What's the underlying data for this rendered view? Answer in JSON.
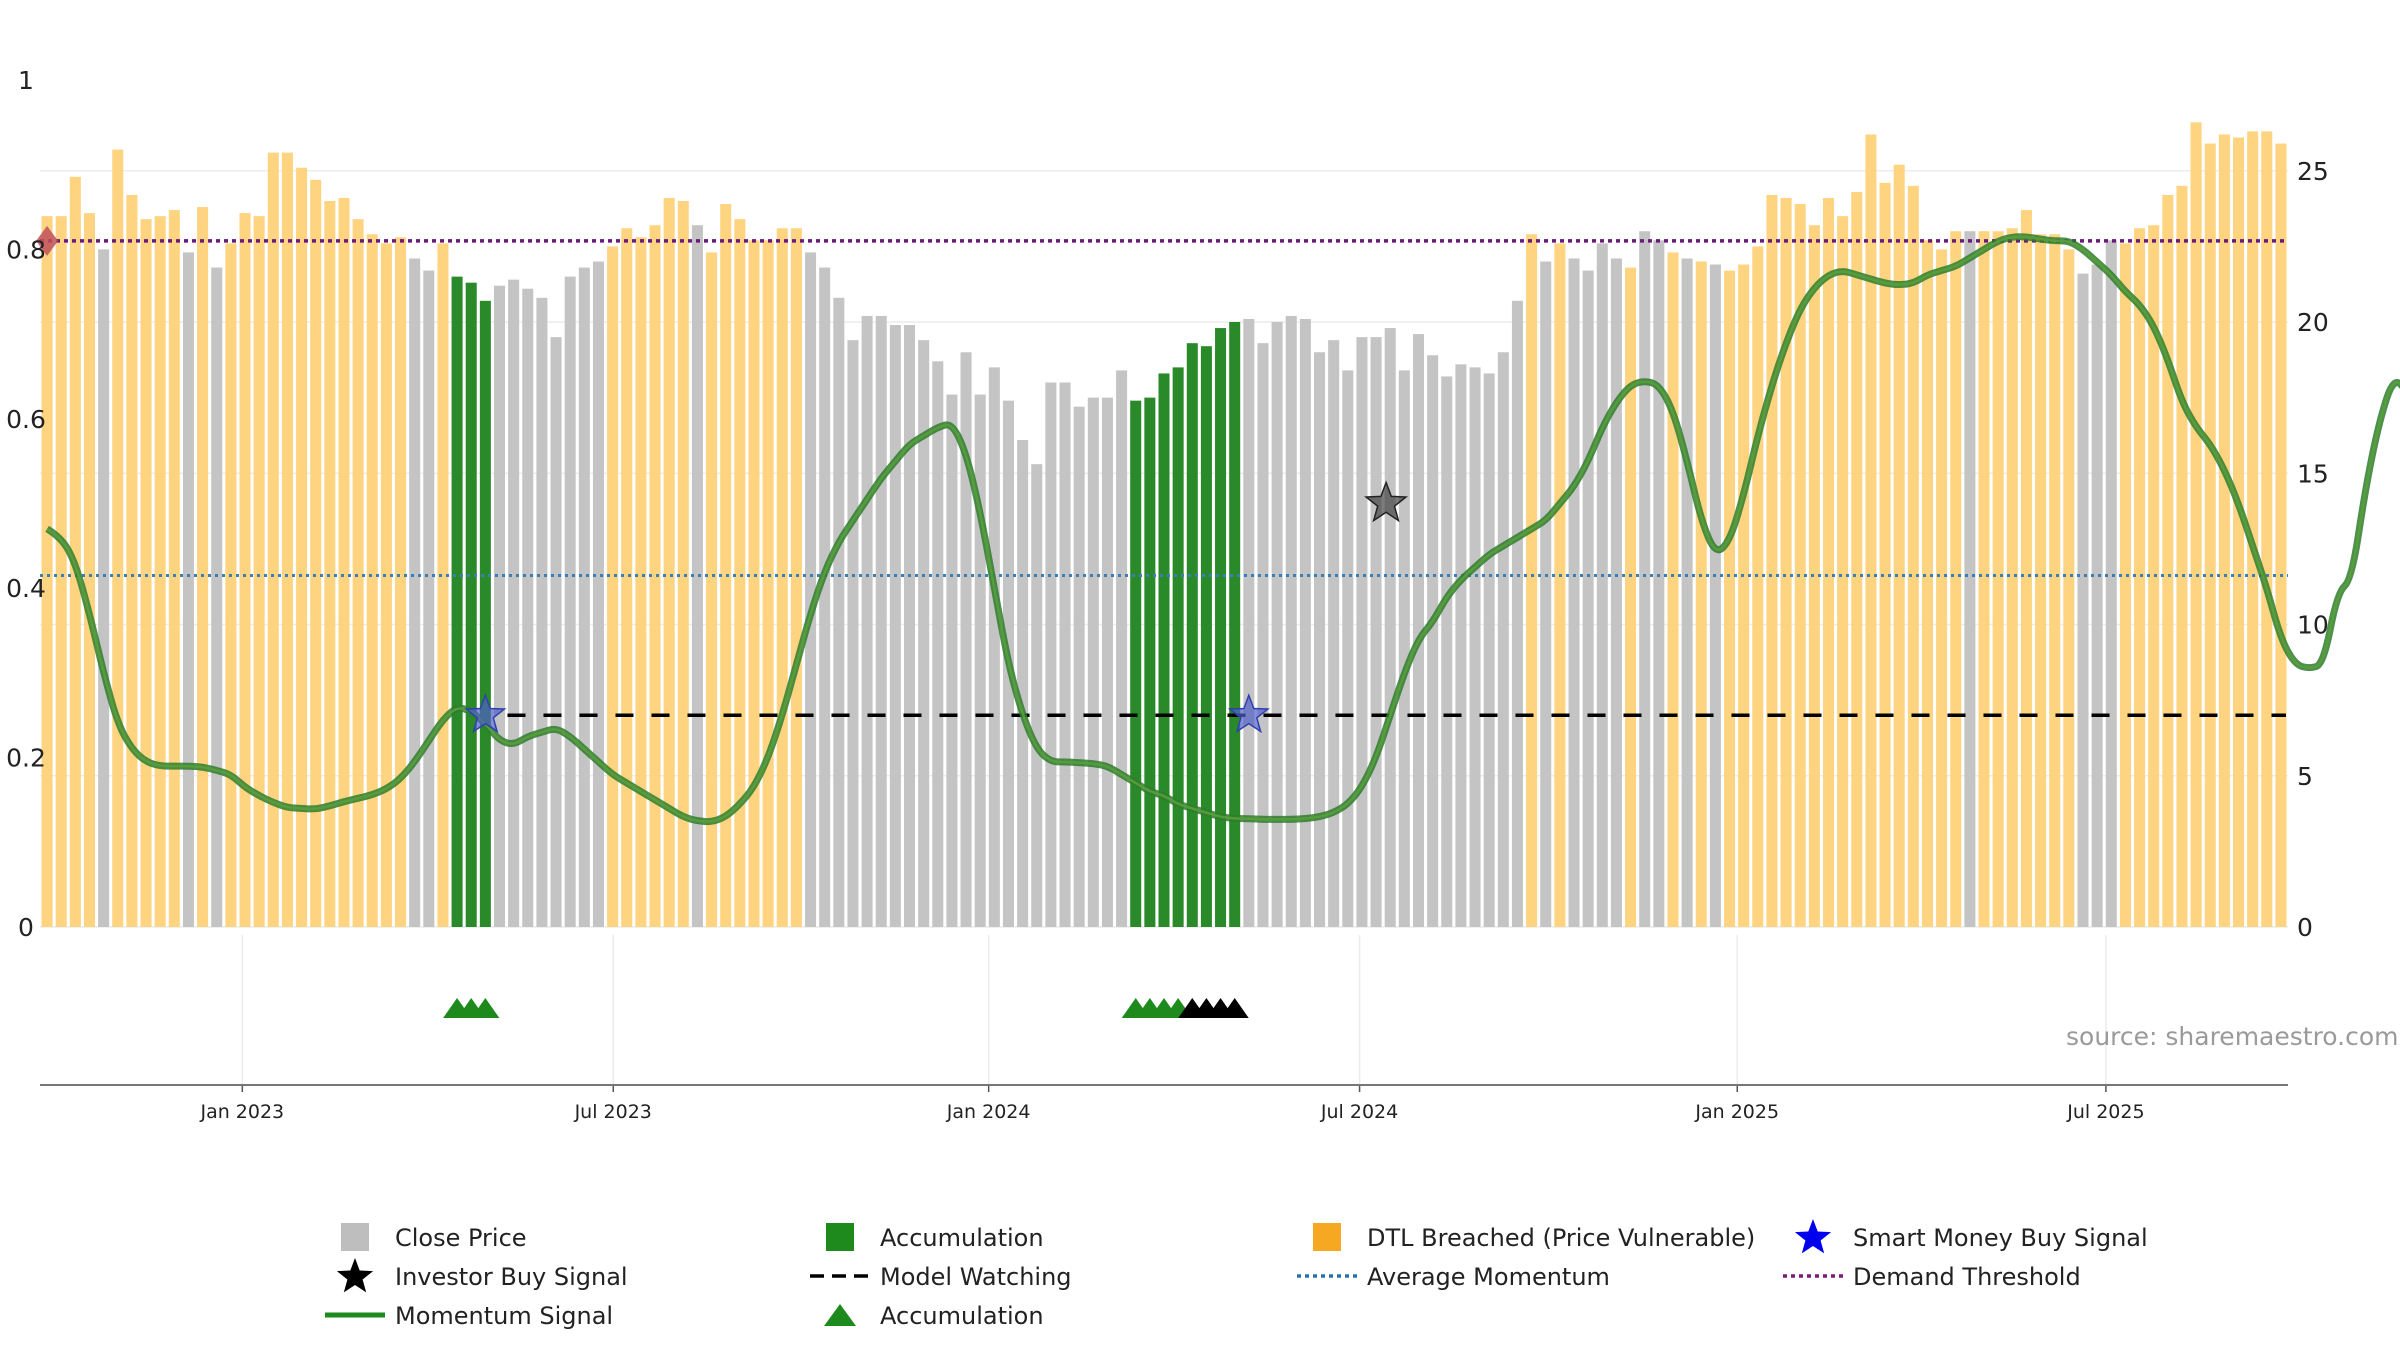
{
  "chart_data": {
    "type": "bar",
    "title": "",
    "source": "source: sharemaestro.com",
    "y_left": {
      "min": 0,
      "max": 1,
      "ticks": [
        "0",
        "0.2",
        "0.4",
        "0.6",
        "0.8",
        "1"
      ]
    },
    "y_right": {
      "min": 0,
      "max": 28,
      "ticks": [
        "0",
        "5",
        "10",
        "15",
        "20",
        "25"
      ]
    },
    "x_ticks": [
      "Jan 2023",
      "Jul 2023",
      "Jan 2024",
      "Jul 2024",
      "Jan 2025",
      "Jul 2025"
    ],
    "bar_values": [
      23.5,
      23.5,
      24.8,
      23.6,
      22.4,
      25.7,
      24.2,
      23.4,
      23.5,
      23.7,
      22.3,
      23.8,
      21.8,
      22.6,
      23.6,
      23.5,
      25.6,
      25.6,
      25.1,
      24.7,
      24.0,
      24.1,
      23.4,
      22.9,
      22.6,
      22.8,
      22.1,
      21.7,
      22.6,
      21.5,
      21.3,
      20.7,
      21.2,
      21.4,
      21.1,
      20.8,
      19.5,
      21.5,
      21.8,
      22.0,
      22.5,
      23.1,
      22.8,
      23.2,
      24.1,
      24.0,
      23.2,
      22.3,
      23.9,
      23.4,
      22.7,
      22.7,
      23.1,
      23.1,
      22.3,
      21.8,
      20.8,
      19.4,
      20.2,
      20.2,
      19.9,
      19.9,
      19.4,
      18.7,
      17.6,
      19.0,
      17.6,
      18.5,
      17.4,
      16.1,
      15.3,
      18.0,
      18.0,
      17.2,
      17.5,
      17.5,
      18.4,
      17.4,
      17.5,
      18.3,
      18.5,
      19.3,
      19.2,
      19.8,
      20.0,
      20.1,
      19.3,
      20.0,
      20.2,
      20.1,
      19.0,
      19.4,
      18.4,
      19.5,
      19.5,
      19.8,
      18.4,
      19.6,
      18.9,
      18.2,
      18.6,
      18.5,
      18.3,
      19.0,
      20.7,
      22.9,
      22.0,
      22.6,
      22.1,
      21.7,
      22.6,
      22.1,
      21.8,
      23.0,
      22.7,
      22.3,
      22.1,
      22.0,
      21.9,
      21.7,
      21.9,
      22.5,
      24.2,
      24.1,
      23.9,
      23.2,
      24.1,
      23.5,
      24.3,
      26.2,
      24.6,
      25.2,
      24.5,
      22.7,
      22.4,
      23.0,
      23.0,
      23.0,
      23.0,
      23.1,
      23.7,
      22.9,
      22.9,
      22.4,
      21.6,
      21.9,
      22.7,
      22.6,
      23.1,
      23.2,
      24.2,
      24.5,
      26.6,
      25.9,
      26.2,
      26.1,
      26.3,
      26.3,
      25.9
    ],
    "bar_categories": [
      "o",
      "o",
      "o",
      "o",
      "g",
      "o",
      "o",
      "o",
      "o",
      "o",
      "g",
      "o",
      "g",
      "o",
      "o",
      "o",
      "o",
      "o",
      "o",
      "o",
      "o",
      "o",
      "o",
      "o",
      "o",
      "o",
      "g",
      "g",
      "o",
      "a",
      "a",
      "a",
      "g",
      "g",
      "g",
      "g",
      "g",
      "g",
      "g",
      "g",
      "o",
      "o",
      "o",
      "o",
      "o",
      "o",
      "g",
      "o",
      "o",
      "o",
      "o",
      "o",
      "o",
      "o",
      "g",
      "g",
      "g",
      "g",
      "g",
      "g",
      "g",
      "g",
      "g",
      "g",
      "g",
      "g",
      "g",
      "g",
      "g",
      "g",
      "g",
      "g",
      "g",
      "g",
      "g",
      "g",
      "g",
      "a",
      "a",
      "a",
      "a",
      "a",
      "a",
      "a",
      "a",
      "g",
      "g",
      "g",
      "g",
      "g",
      "g",
      "g",
      "g",
      "g",
      "g",
      "g",
      "g",
      "g",
      "g",
      "g",
      "g",
      "g",
      "g",
      "g",
      "g",
      "o",
      "g",
      "o",
      "g",
      "g",
      "g",
      "g",
      "o",
      "g",
      "g",
      "o",
      "g",
      "o",
      "g",
      "o",
      "o",
      "o",
      "o",
      "o",
      "o",
      "o",
      "o",
      "o",
      "o",
      "o",
      "o",
      "o",
      "o",
      "o",
      "o",
      "o",
      "g",
      "o",
      "o",
      "o",
      "o",
      "o",
      "o",
      "o",
      "g",
      "g",
      "g",
      "o",
      "o",
      "o",
      "o",
      "o",
      "o",
      "o",
      "o",
      "o",
      "o",
      "o",
      "o"
    ],
    "momentum_values": [
      0.47,
      0.46,
      0.43,
      0.37,
      0.3,
      0.24,
      0.21,
      0.195,
      0.19,
      0.19,
      0.19,
      0.189,
      0.185,
      0.18,
      0.165,
      0.155,
      0.147,
      0.141,
      0.14,
      0.139,
      0.143,
      0.148,
      0.152,
      0.156,
      0.163,
      0.175,
      0.195,
      0.22,
      0.245,
      0.26,
      0.255,
      0.24,
      0.22,
      0.215,
      0.225,
      0.23,
      0.235,
      0.225,
      0.21,
      0.195,
      0.18,
      0.17,
      0.16,
      0.15,
      0.14,
      0.13,
      0.125,
      0.124,
      0.13,
      0.145,
      0.165,
      0.2,
      0.25,
      0.31,
      0.37,
      0.42,
      0.455,
      0.48,
      0.505,
      0.53,
      0.55,
      0.57,
      0.58,
      0.59,
      0.595,
      0.56,
      0.49,
      0.4,
      0.31,
      0.25,
      0.21,
      0.195,
      0.195,
      0.194,
      0.193,
      0.19,
      0.18,
      0.17,
      0.16,
      0.155,
      0.145,
      0.14,
      0.135,
      0.13,
      0.128,
      0.128,
      0.127,
      0.127,
      0.127,
      0.128,
      0.13,
      0.135,
      0.145,
      0.165,
      0.2,
      0.25,
      0.3,
      0.34,
      0.36,
      0.39,
      0.41,
      0.425,
      0.44,
      0.45,
      0.46,
      0.47,
      0.48,
      0.5,
      0.52,
      0.55,
      0.59,
      0.62,
      0.64,
      0.645,
      0.64,
      0.61,
      0.55,
      0.48,
      0.44,
      0.455,
      0.51,
      0.58,
      0.64,
      0.69,
      0.73,
      0.755,
      0.77,
      0.775,
      0.77,
      0.765,
      0.76,
      0.758,
      0.76,
      0.77,
      0.775,
      0.78,
      0.79,
      0.8,
      0.81,
      0.815,
      0.815,
      0.812,
      0.81,
      0.81,
      0.8,
      0.785,
      0.77,
      0.75,
      0.735,
      0.71,
      0.67,
      0.62,
      0.59,
      0.57,
      0.54,
      0.5,
      0.45,
      0.4,
      0.34,
      0.31,
      0.305,
      0.31,
      0.395,
      0.41,
      0.52,
      0.6,
      0.65,
      0.63
    ],
    "series": [
      {
        "name": "Close Price",
        "type": "bar",
        "color": "#bebebe"
      },
      {
        "name": "Accumulation",
        "type": "bar",
        "color": "#2a8a2a"
      },
      {
        "name": "DTL Breached (Price Vulnerable)",
        "type": "bar",
        "color": "#ffd27a"
      },
      {
        "name": "Momentum Signal",
        "type": "line",
        "color": "#2e8b2e"
      },
      {
        "name": "Average Momentum",
        "type": "hline",
        "value": 0.415,
        "color": "#3a7fb5"
      },
      {
        "name": "Demand Threshold",
        "type": "hline",
        "value": 0.81,
        "color": "#6a1a7a"
      },
      {
        "name": "Model Watching",
        "type": "hline",
        "value": 0.25,
        "color": "#000000"
      }
    ],
    "smart_money_signals": [
      31,
      85
    ],
    "investor_buy_signals": [
      94
    ],
    "accumulation_markers": [
      29,
      30,
      31,
      77,
      78,
      79,
      80
    ],
    "watching_markers": [
      81,
      82,
      83,
      84
    ]
  },
  "legend": [
    {
      "label": "Close Price",
      "icon": "square-icon",
      "color": "#bebebe"
    },
    {
      "label": "Accumulation",
      "icon": "square-icon",
      "color": "#1e8a1e"
    },
    {
      "label": "DTL Breached (Price Vulnerable)",
      "icon": "square-icon",
      "color": "#f7a823"
    },
    {
      "label": "Smart Money Buy Signal",
      "icon": "star-icon",
      "color": "#0000ee"
    },
    {
      "label": "Investor Buy Signal",
      "icon": "star-icon",
      "color": "#000000"
    },
    {
      "label": "Model Watching",
      "icon": "dash-line-icon",
      "color": "#000000"
    },
    {
      "label": "Average Momentum",
      "icon": "dot-line-icon",
      "color": "#2a6fa8"
    },
    {
      "label": "Demand Threshold",
      "icon": "dot-line-icon",
      "color": "#7a1a7a"
    },
    {
      "label": "Momentum Signal",
      "icon": "solid-line-icon",
      "color": "#1e8a1e"
    },
    {
      "label": "Accumulation",
      "icon": "triangle-icon",
      "color": "#1e8a1e"
    }
  ]
}
